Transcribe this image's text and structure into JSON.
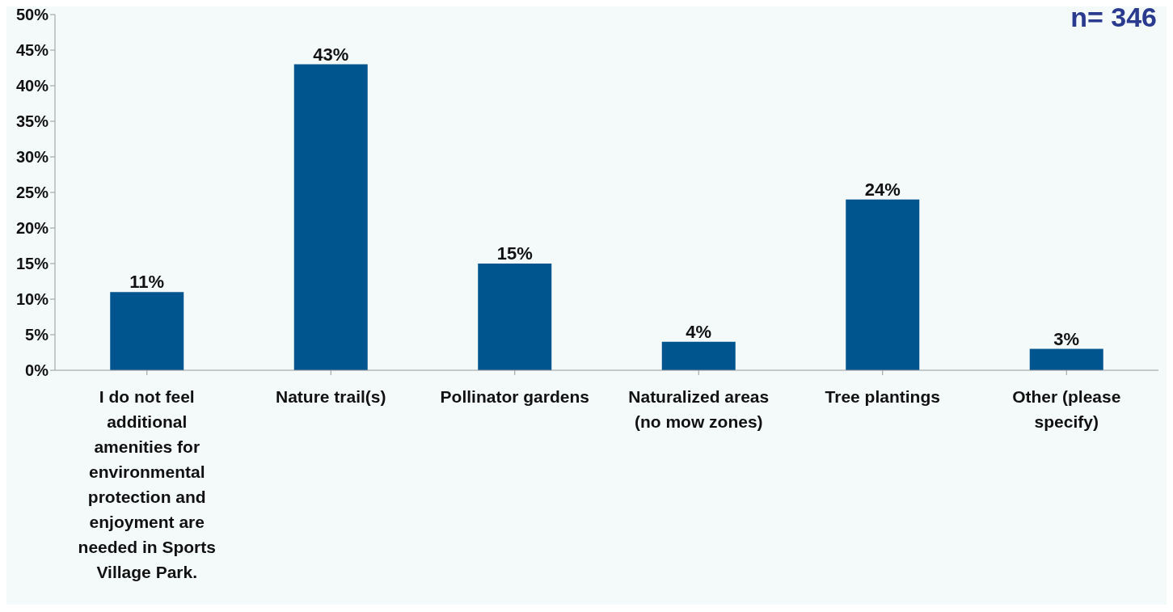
{
  "chart_data": {
    "type": "bar",
    "categories": [
      "I do not feel additional amenities for environmental protection and enjoyment are needed in Sports Village Park.",
      "Nature trail(s)",
      "Pollinator gardens",
      "Naturalized areas (no mow zones)",
      "Tree plantings",
      "Other (please specify)"
    ],
    "values": [
      11,
      43,
      15,
      4,
      24,
      3
    ],
    "value_labels": [
      "11%",
      "43%",
      "15%",
      "4%",
      "24%",
      "3%"
    ],
    "color": "#00558f",
    "ylim": [
      0,
      50
    ],
    "yticks": [
      {
        "value": 0,
        "label": "0%"
      },
      {
        "value": 5,
        "label": "5%"
      },
      {
        "value": 10,
        "label": "10%"
      },
      {
        "value": 15,
        "label": "15%"
      },
      {
        "value": 20,
        "label": "20%"
      },
      {
        "value": 25,
        "label": "25%"
      },
      {
        "value": 30,
        "label": "30%"
      },
      {
        "value": 35,
        "label": "35%"
      },
      {
        "value": 40,
        "label": "40%"
      },
      {
        "value": 45,
        "label": "45%"
      },
      {
        "value": 50,
        "label": "50%"
      }
    ],
    "annotations": [
      "n= 346"
    ],
    "grid": false,
    "legend": false
  }
}
